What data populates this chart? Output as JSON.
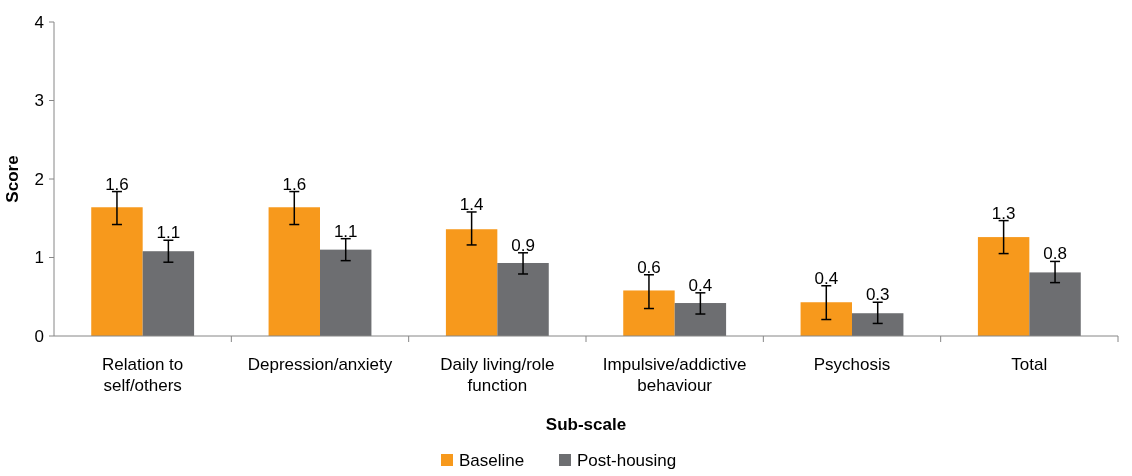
{
  "chart_data": {
    "type": "bar",
    "xlabel": "Sub-scale",
    "ylabel": "Score",
    "categories": [
      "Relation to self/others",
      "Depression/anxiety",
      "Daily living/role function",
      "Impulsive/addictive behaviour",
      "Psychosis",
      "Total"
    ],
    "series": [
      {
        "name": "Baseline",
        "color": "#f7991c",
        "values": [
          1.64,
          1.64,
          1.36,
          0.58,
          0.43,
          1.26
        ],
        "errors": [
          [
            1.42,
            1.84
          ],
          [
            1.42,
            1.84
          ],
          [
            1.16,
            1.58
          ],
          [
            0.35,
            0.78
          ],
          [
            0.21,
            0.64
          ],
          [
            1.05,
            1.47
          ]
        ],
        "value_labels": [
          "1.6",
          "1.6",
          "1.4",
          "0.6",
          "0.4",
          "1.3"
        ]
      },
      {
        "name": "Post-housing",
        "color": "#6d6e71",
        "values": [
          1.08,
          1.1,
          0.93,
          0.42,
          0.29,
          0.81
        ],
        "errors": [
          [
            0.94,
            1.22
          ],
          [
            0.96,
            1.24
          ],
          [
            0.79,
            1.06
          ],
          [
            0.28,
            0.55
          ],
          [
            0.16,
            0.43
          ],
          [
            0.68,
            0.95
          ]
        ],
        "value_labels": [
          "1.1",
          "1.1",
          "0.9",
          "0.4",
          "0.3",
          "0.8"
        ]
      }
    ],
    "ylim": [
      0,
      4
    ],
    "yticks": [
      0,
      1,
      2,
      3,
      4
    ],
    "grid": false,
    "legend": "bottom"
  }
}
